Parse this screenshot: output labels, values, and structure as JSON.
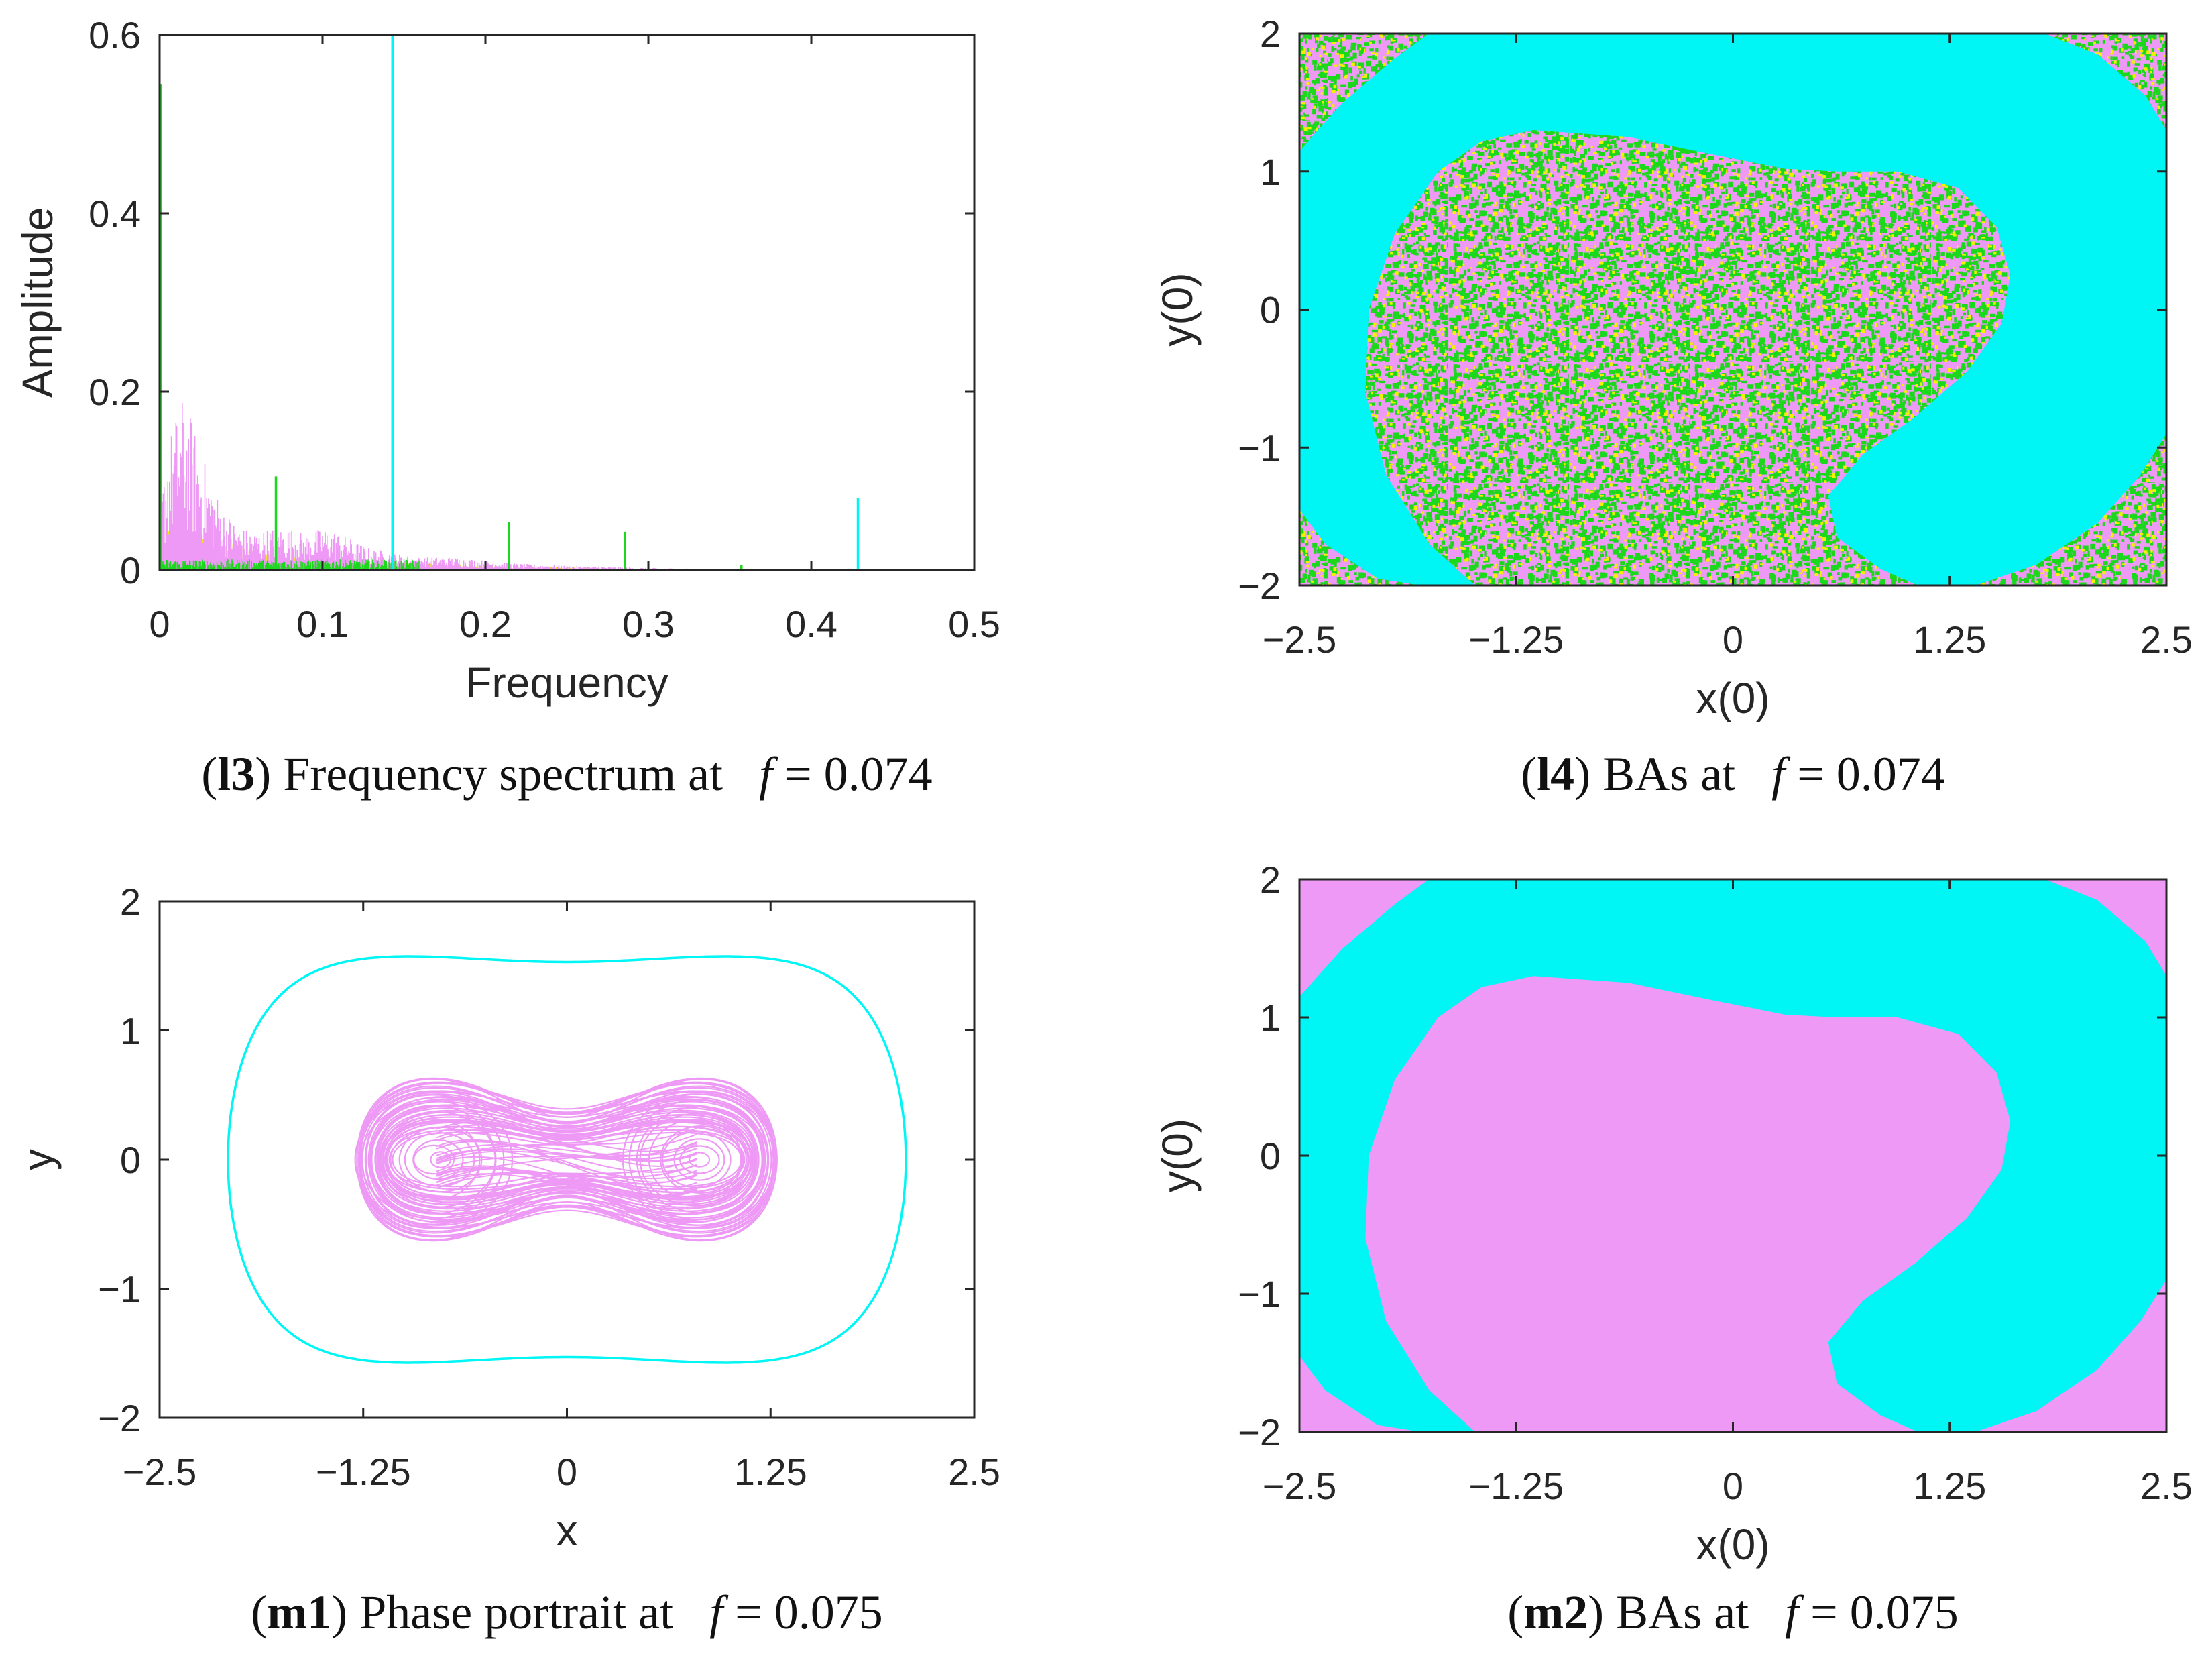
{
  "colors": {
    "cyan": "#00f5f5",
    "violet": "#ee99f5",
    "green": "#1cd81c",
    "yellow": "#f2f200",
    "axis": "#262626"
  },
  "chart_data": [
    {
      "id": "l3",
      "type": "line",
      "title": "Frequency spectrum",
      "xlabel": "Frequency",
      "ylabel": "Amplitude",
      "xlim": [
        0,
        0.5
      ],
      "ylim": [
        0,
        0.6
      ],
      "xticks": [
        0,
        0.1,
        0.2,
        0.3,
        0.4,
        0.5
      ],
      "xtick_labels": [
        "0",
        "0.1",
        "0.2",
        "0.3",
        "0.4",
        "0.5"
      ],
      "yticks": [
        0,
        0.2,
        0.4,
        0.6
      ],
      "ytick_labels": [
        "0",
        "0.2",
        "0.4",
        "0.6"
      ],
      "caption": {
        "tag": "l3",
        "text": " Frequency spectrum at",
        "param": "f",
        "value": " = 0.074"
      },
      "series": [
        {
          "name": "cyan attractor",
          "color": "cyan",
          "spikes": [
            [
              0.1429,
              0.6
            ],
            [
              0.4286,
              0.081
            ]
          ]
        },
        {
          "name": "green attractor",
          "color": "green",
          "spikes": [
            [
              0.0,
              0.545
            ],
            [
              0.0714,
              0.105
            ],
            [
              0.2143,
              0.054
            ],
            [
              0.2857,
              0.043
            ],
            [
              0.3571,
              0.006
            ]
          ]
        },
        {
          "name": "violet attractor (broadband)",
          "color": "violet",
          "envelope": [
            [
              0.0,
              0.06
            ],
            [
              0.005,
              0.12
            ],
            [
              0.01,
              0.145
            ],
            [
              0.015,
              0.165
            ],
            [
              0.02,
              0.14
            ],
            [
              0.03,
              0.09
            ],
            [
              0.04,
              0.055
            ],
            [
              0.05,
              0.04
            ],
            [
              0.06,
              0.036
            ],
            [
              0.07,
              0.04
            ],
            [
              0.08,
              0.04
            ],
            [
              0.09,
              0.034
            ],
            [
              0.1,
              0.04
            ],
            [
              0.11,
              0.036
            ],
            [
              0.12,
              0.027
            ],
            [
              0.13,
              0.02
            ],
            [
              0.14,
              0.018
            ],
            [
              0.15,
              0.014
            ],
            [
              0.16,
              0.012
            ],
            [
              0.18,
              0.012
            ],
            [
              0.2,
              0.009
            ],
            [
              0.22,
              0.006
            ],
            [
              0.25,
              0.004
            ],
            [
              0.3,
              0.002
            ],
            [
              0.35,
              0.001
            ],
            [
              0.4,
              0.0005
            ],
            [
              0.5,
              0.0002
            ]
          ]
        },
        {
          "name": "yellow attractor",
          "color": "yellow",
          "envelope": [
            [
              0.0,
              0.03
            ],
            [
              0.01,
              0.06
            ],
            [
              0.02,
              0.05
            ],
            [
              0.05,
              0.02
            ],
            [
              0.1,
              0.01
            ],
            [
              0.2,
              0.004
            ],
            [
              0.3,
              0.001
            ],
            [
              0.5,
              0.0
            ]
          ]
        }
      ]
    },
    {
      "id": "l4",
      "type": "heatmap",
      "title": "BAs",
      "xlabel": "x(0)",
      "ylabel": "y(0)",
      "xlim": [
        -2.5,
        2.5
      ],
      "ylim": [
        -2,
        2
      ],
      "xticks": [
        -2.5,
        -1.25,
        0,
        1.25,
        2.5
      ],
      "xtick_labels": [
        "−2.5",
        "−1.25",
        "0",
        "1.25",
        "2.5"
      ],
      "yticks": [
        -2,
        -1,
        0,
        1,
        2
      ],
      "ytick_labels": [
        "−2",
        "−1",
        "0",
        "1",
        "2"
      ],
      "caption": {
        "tag": "l4",
        "text": " BAs at",
        "param": "f",
        "value": " = 0.074"
      },
      "regions": [
        {
          "name": "cyan basin (band)",
          "color": "cyan"
        },
        {
          "name": "riddled basin (violet/green/yellow mix)",
          "colors": [
            "violet",
            "green",
            "yellow"
          ]
        }
      ],
      "central_boundary": [
        [
          -1.15,
          1.3
        ],
        [
          -0.5,
          1.25
        ],
        [
          0.1,
          1.05
        ],
        [
          0.5,
          1.0
        ],
        [
          0.9,
          1.0
        ],
        [
          1.4,
          0.8
        ],
        [
          1.6,
          0.4
        ],
        [
          1.55,
          -0.1
        ],
        [
          1.2,
          -0.5
        ],
        [
          0.7,
          -1.0
        ],
        [
          0.5,
          -1.3
        ],
        [
          0.7,
          -1.75
        ],
        [
          1.3,
          -1.95
        ],
        [
          1.85,
          -1.8
        ],
        [
          2.3,
          -1.2
        ],
        [
          2.5,
          -0.9
        ],
        [
          2.5,
          1.3
        ],
        [
          2.1,
          1.85
        ],
        [
          1.6,
          2.0
        ],
        [
          -2.5,
          2.0
        ],
        [
          -2.5,
          1.2
        ],
        [
          -2.3,
          1.5
        ],
        [
          -1.9,
          1.85
        ],
        [
          -1.7,
          2.0
        ]
      ]
    },
    {
      "id": "m1",
      "type": "line",
      "title": "Phase portrait",
      "xlabel": "x",
      "ylabel": "y",
      "xlim": [
        -2.5,
        2.5
      ],
      "ylim": [
        -2,
        2
      ],
      "xticks": [
        -2.5,
        -1.25,
        0,
        1.25,
        2.5
      ],
      "xtick_labels": [
        "−2.5",
        "−1.25",
        "0",
        "1.25",
        "2.5"
      ],
      "yticks": [
        -2,
        -1,
        0,
        1,
        2
      ],
      "ytick_labels": [
        "−2",
        "−1",
        "0",
        "1",
        "2"
      ],
      "caption": {
        "tag": "m1",
        "text": " Phase portrait at",
        "param": "f",
        "value": " = 0.075"
      },
      "series": [
        {
          "name": "large periodic orbit",
          "color": "cyan",
          "x_max": 2.08,
          "y_max": 1.6,
          "y_mid": 1.53
        },
        {
          "name": "chaotic attractor",
          "color": "violet",
          "x_max": 1.32,
          "y_max": 0.68,
          "y_mid": 0.45,
          "foci": [
            -0.8,
            0.8
          ]
        }
      ]
    },
    {
      "id": "m2",
      "type": "heatmap",
      "title": "BAs",
      "xlabel": "x(0)",
      "ylabel": "y(0)",
      "xlim": [
        -2.5,
        2.5
      ],
      "ylim": [
        -2,
        2
      ],
      "xticks": [
        -2.5,
        -1.25,
        0,
        1.25,
        2.5
      ],
      "xtick_labels": [
        "−2.5",
        "−1.25",
        "0",
        "1.25",
        "2.5"
      ],
      "yticks": [
        -2,
        -1,
        0,
        1,
        2
      ],
      "ytick_labels": [
        "−2",
        "−1",
        "0",
        "1",
        "2"
      ],
      "caption": {
        "tag": "m2",
        "text": " BAs at",
        "param": "f",
        "value": " = 0.075"
      },
      "regions": [
        {
          "name": "cyan basin (band)",
          "color": "cyan"
        },
        {
          "name": "violet basin",
          "color": "violet"
        }
      ]
    }
  ]
}
